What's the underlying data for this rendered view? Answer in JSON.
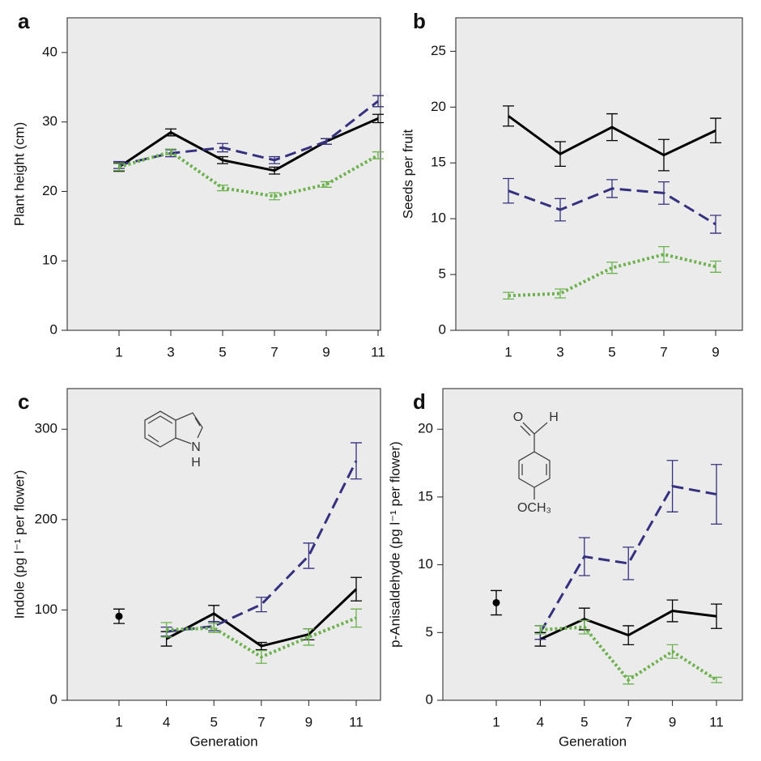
{
  "chart_data": [
    {
      "type": "line",
      "label": "a",
      "ylabel": "Plant height (cm)",
      "categories": [
        "1",
        "3",
        "5",
        "7",
        "9",
        "11"
      ],
      "ylim": [
        0,
        45
      ],
      "yticks": [
        0,
        10,
        20,
        30,
        40
      ],
      "series": [
        {
          "color": "#000000",
          "linestyle": "solid",
          "values": [
            23.5,
            28.5,
            24.5,
            23.0,
            27.2,
            30.5
          ],
          "errors": [
            0.6,
            0.5,
            0.5,
            0.5,
            0.4,
            0.6
          ]
        },
        {
          "color": "#35317f",
          "linestyle": "dashed",
          "values": [
            23.8,
            25.5,
            26.3,
            24.5,
            27.2,
            33.0
          ],
          "errors": [
            0.5,
            0.5,
            0.6,
            0.5,
            0.4,
            0.8
          ]
        },
        {
          "color": "#6db24f",
          "linestyle": "dotted",
          "values": [
            23.5,
            25.7,
            20.5,
            19.3,
            21.0,
            25.2
          ],
          "errors": [
            0.5,
            0.4,
            0.4,
            0.5,
            0.4,
            0.5
          ]
        }
      ]
    },
    {
      "type": "line",
      "label": "b",
      "ylabel": "Seeds per fruit",
      "categories": [
        "1",
        "3",
        "5",
        "7",
        "9"
      ],
      "ylim": [
        0,
        28
      ],
      "yticks": [
        0,
        5,
        10,
        15,
        20,
        25
      ],
      "series": [
        {
          "color": "#000000",
          "linestyle": "solid",
          "values": [
            19.2,
            15.8,
            18.2,
            15.7,
            17.9
          ],
          "errors": [
            0.9,
            1.1,
            1.2,
            1.4,
            1.1
          ]
        },
        {
          "color": "#35317f",
          "linestyle": "dashed",
          "values": [
            12.5,
            10.8,
            12.7,
            12.3,
            9.5
          ],
          "errors": [
            1.1,
            1.0,
            0.8,
            1.0,
            0.8
          ]
        },
        {
          "color": "#6db24f",
          "linestyle": "dotted",
          "values": [
            3.1,
            3.3,
            5.6,
            6.8,
            5.7
          ],
          "errors": [
            0.3,
            0.4,
            0.5,
            0.7,
            0.5
          ]
        }
      ]
    },
    {
      "type": "line",
      "label": "c",
      "ylabel": "Indole (pg l⁻¹ per flower)",
      "xlabel": "Generation",
      "categories": [
        "1",
        "4",
        "5",
        "7",
        "9",
        "11"
      ],
      "ylim": [
        0,
        345
      ],
      "yticks": [
        0,
        100,
        200,
        300
      ],
      "annotations": [
        "N",
        "H"
      ],
      "series": [
        {
          "color": "#000000",
          "linestyle": "none",
          "marker": "circle",
          "values": [
            93,
            null,
            null,
            null,
            null,
            null
          ],
          "errors": [
            8,
            null,
            null,
            null,
            null,
            null
          ]
        },
        {
          "color": "#000000",
          "linestyle": "solid",
          "values": [
            null,
            68,
            96,
            60,
            73,
            123
          ],
          "errors": [
            null,
            8,
            9,
            4,
            6,
            13
          ]
        },
        {
          "color": "#35317f",
          "linestyle": "dashed",
          "values": [
            null,
            76,
            82,
            106,
            160,
            265
          ],
          "errors": [
            null,
            5,
            5,
            8,
            14,
            20
          ]
        },
        {
          "color": "#6db24f",
          "linestyle": "dotted",
          "values": [
            null,
            78,
            80,
            48,
            70,
            91
          ],
          "errors": [
            null,
            8,
            5,
            7,
            9,
            10
          ]
        }
      ]
    },
    {
      "type": "line",
      "label": "d",
      "ylabel": "p-Anisaldehyde (pg l⁻¹ per flower)",
      "xlabel": "Generation",
      "categories": [
        "1",
        "4",
        "5",
        "7",
        "9",
        "11"
      ],
      "ylim": [
        0,
        23
      ],
      "yticks": [
        0,
        5,
        10,
        15,
        20
      ],
      "annotations": [
        "O",
        "H",
        "OCH₃"
      ],
      "series": [
        {
          "color": "#000000",
          "linestyle": "none",
          "marker": "circle",
          "values": [
            7.2,
            null,
            null,
            null,
            null,
            null
          ],
          "errors": [
            0.9,
            null,
            null,
            null,
            null,
            null
          ]
        },
        {
          "color": "#000000",
          "linestyle": "solid",
          "values": [
            null,
            4.5,
            6.0,
            4.8,
            6.6,
            6.2
          ],
          "errors": [
            null,
            0.5,
            0.8,
            0.7,
            0.8,
            0.9
          ]
        },
        {
          "color": "#35317f",
          "linestyle": "dashed",
          "values": [
            null,
            5.0,
            10.6,
            10.1,
            15.8,
            15.2
          ],
          "errors": [
            null,
            0.5,
            1.4,
            1.2,
            1.9,
            2.2
          ]
        },
        {
          "color": "#6db24f",
          "linestyle": "dotted",
          "values": [
            null,
            5.2,
            5.4,
            1.5,
            3.6,
            1.5
          ],
          "errors": [
            null,
            0.3,
            0.5,
            0.3,
            0.5,
            0.2
          ]
        }
      ]
    }
  ]
}
